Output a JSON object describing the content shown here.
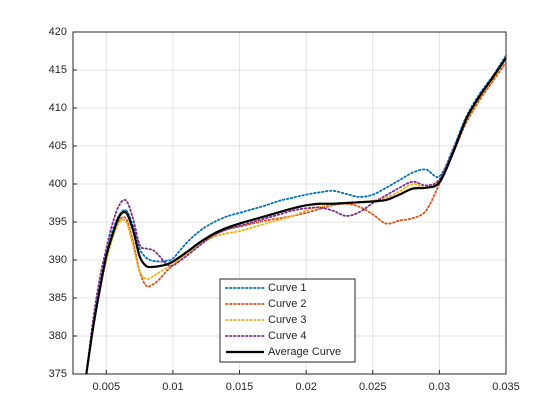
{
  "chart_data": {
    "type": "line",
    "x": [
      0.0035,
      0.004,
      0.0045,
      0.005,
      0.0055,
      0.006,
      0.0065,
      0.007,
      0.0075,
      0.008,
      0.0085,
      0.009,
      0.0095,
      0.01,
      0.011,
      0.012,
      0.013,
      0.014,
      0.015,
      0.016,
      0.017,
      0.018,
      0.019,
      0.02,
      0.021,
      0.022,
      0.023,
      0.024,
      0.025,
      0.026,
      0.027,
      0.028,
      0.029,
      0.03,
      0.031,
      0.032,
      0.033,
      0.034,
      0.035
    ],
    "series": [
      {
        "name": "Curve 1",
        "color": "#0072BD",
        "dash": "dotted",
        "values": [
          375,
          381.5,
          386.8,
          391,
          394,
          396,
          396.5,
          394.5,
          391.5,
          390.3,
          389.9,
          389.8,
          389.9,
          390.2,
          392.2,
          393.8,
          394.9,
          395.7,
          396.2,
          396.7,
          397.2,
          397.8,
          398.2,
          398.6,
          398.9,
          399.1,
          398.7,
          398.3,
          398.6,
          399.5,
          400.5,
          401.5,
          401.9,
          401,
          404.5,
          408.8,
          411.8,
          414.2,
          416.9
        ]
      },
      {
        "name": "Curve 2",
        "color": "#D95319",
        "dash": "dotted",
        "values": [
          375,
          381,
          386,
          390,
          393.5,
          395.3,
          395.4,
          392.5,
          388.5,
          386.6,
          386.8,
          387.5,
          388.5,
          389.3,
          390.8,
          392,
          393.2,
          394,
          394.4,
          394.8,
          395.2,
          395.5,
          395.8,
          396.2,
          396.7,
          397.2,
          397.4,
          397,
          396,
          394.8,
          395.2,
          395.5,
          396.5,
          400,
          404,
          408,
          411,
          413.5,
          416
        ]
      },
      {
        "name": "Curve 3",
        "color": "#EDB120",
        "dash": "dotted",
        "values": [
          375,
          381,
          386,
          390,
          393,
          395,
          395,
          392,
          388.5,
          387.5,
          387.8,
          388.4,
          388.9,
          389.4,
          390.8,
          392,
          393,
          393.5,
          393.8,
          394.3,
          394.8,
          395.3,
          395.8,
          396.5,
          397,
          397.3,
          397.5,
          397.6,
          397.8,
          398.2,
          399,
          400,
          399.5,
          400.5,
          404.2,
          408.3,
          411.3,
          413.8,
          416.5
        ]
      },
      {
        "name": "Curve 4",
        "color": "#7E2F8E",
        "dash": "dotted",
        "values": [
          375,
          382,
          387.5,
          391.5,
          395,
          397.3,
          397.8,
          395.5,
          392,
          391.5,
          391.3,
          390.5,
          389.5,
          389.3,
          390.5,
          391.9,
          393.2,
          394,
          394.5,
          395,
          395.5,
          396,
          396.5,
          396.8,
          396.9,
          396.5,
          395.8,
          396.3,
          397.5,
          398.5,
          399.5,
          400.3,
          399.8,
          400.6,
          404.3,
          408.5,
          411.5,
          414,
          416.7
        ]
      },
      {
        "name": "Average Curve",
        "color": "#000000",
        "dash": "solid",
        "values": [
          375,
          381,
          386,
          390.5,
          393.5,
          395.8,
          396.2,
          394,
          390.5,
          389.2,
          389.1,
          389.2,
          389.4,
          389.8,
          391,
          392.3,
          393.4,
          394.2,
          394.8,
          395.3,
          395.8,
          396.3,
          396.8,
          397.2,
          397.4,
          397.4,
          397.5,
          397.6,
          397.7,
          397.9,
          398.6,
          399.4,
          399.5,
          400.2,
          404,
          408.5,
          411.5,
          414,
          416.6
        ]
      }
    ],
    "xlim": [
      0.0025,
      0.035
    ],
    "xticks": [
      0.005,
      0.01,
      0.015,
      0.02,
      0.025,
      0.03,
      0.035
    ],
    "ylim": [
      375,
      420
    ],
    "yticks": [
      375,
      380,
      385,
      390,
      395,
      400,
      405,
      410,
      415,
      420
    ],
    "grid": true,
    "legend": "bottom"
  }
}
